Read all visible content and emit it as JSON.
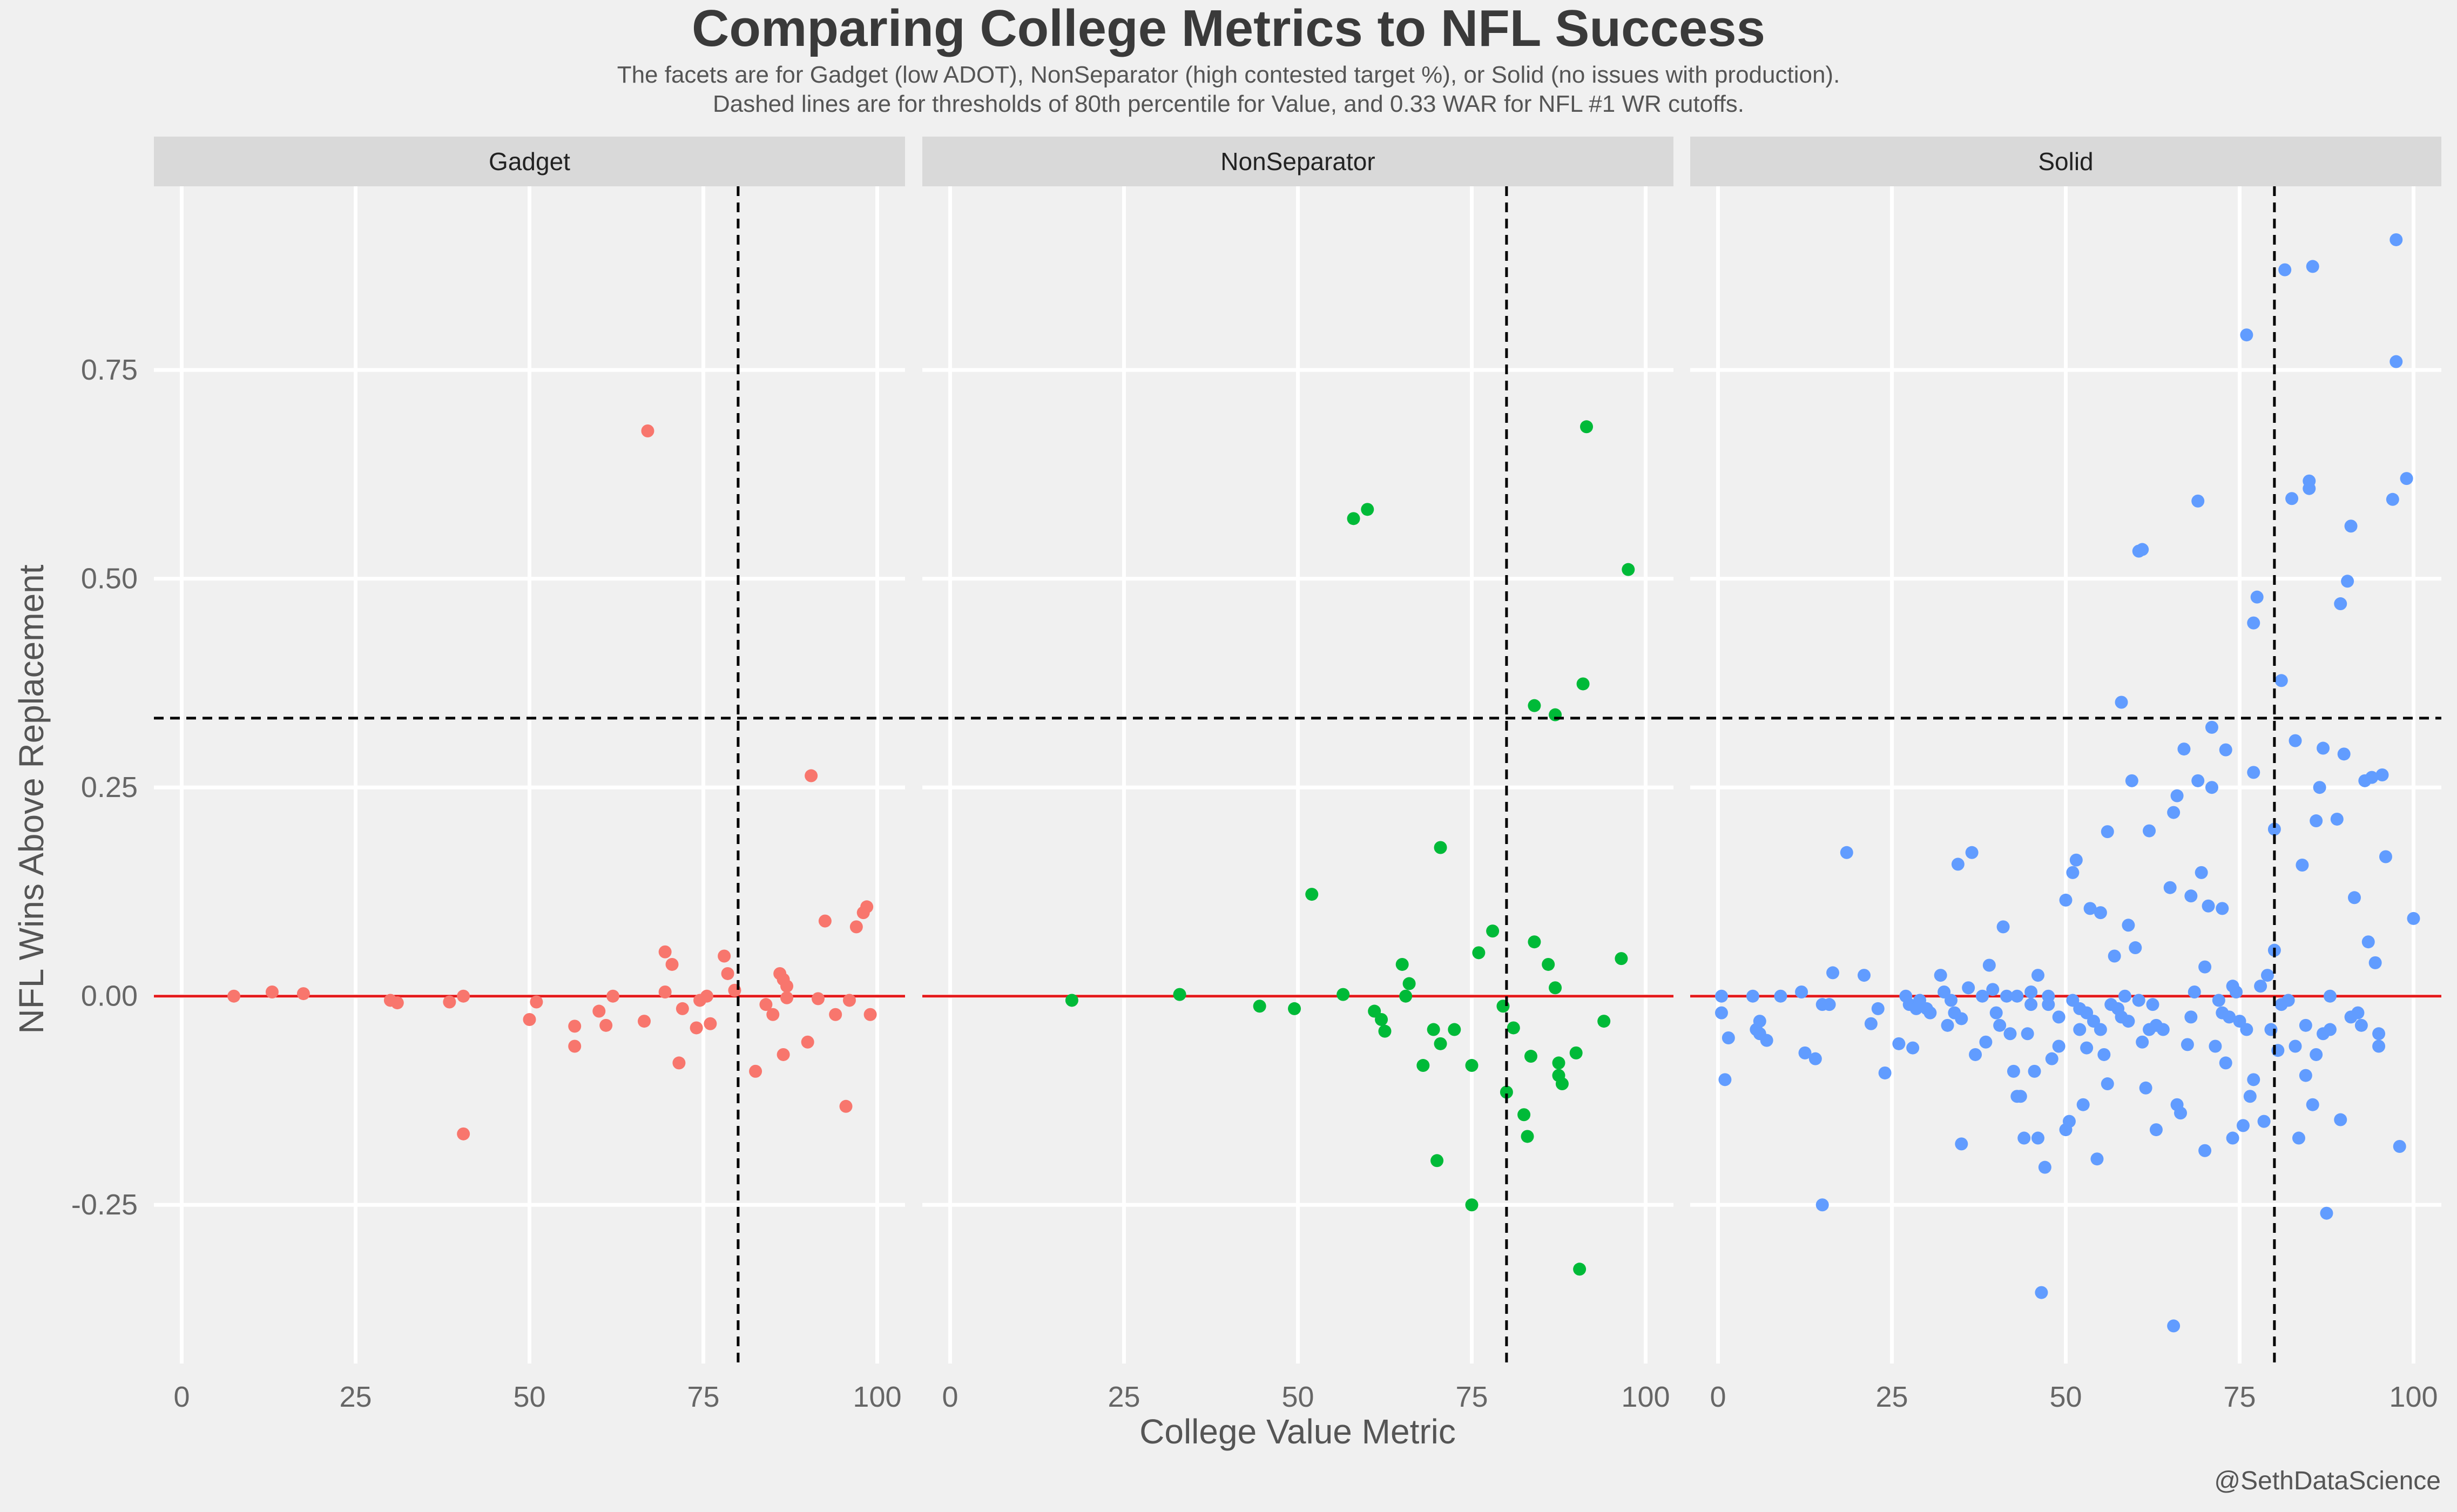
{
  "chart_data": {
    "type": "scatter",
    "title": "Comparing College Metrics to NFL Success",
    "subtitle": [
      "The facets are for Gadget (low ADOT), NonSeparator (high contested target %), or Solid (no issues with production).",
      "Dashed lines are for thresholds of 80th percentile for Value, and 0.33 WAR for NFL #1 WR cutoffs."
    ],
    "xlabel": "College Value Metric",
    "ylabel": "NFL Wins Above Replacement",
    "caption": "@SethDataScience",
    "xlim": [
      -4,
      104
    ],
    "ylim": [
      -0.44,
      0.97
    ],
    "x_ticks": [
      0,
      25,
      50,
      75,
      100
    ],
    "x_tick_labels": [
      "0",
      "25",
      "50",
      "75",
      "100"
    ],
    "y_ticks": [
      -0.25,
      0,
      0.25,
      0.5,
      0.75
    ],
    "y_tick_labels": [
      "-0.25",
      "0.00",
      "0.25",
      "0.50",
      "0.75"
    ],
    "grid": true,
    "reference_lines": {
      "x_dashed": 80,
      "y_dashed": 0.333,
      "y_solid_red": 0
    },
    "colors": {
      "background": "#f0f0f0",
      "strip": "#d9d9d9",
      "grid": "#ffffff",
      "zero_line": "#e41a1c",
      "dashed": "#000000"
    },
    "facets": [
      {
        "name": "Gadget",
        "color": "#f8766d",
        "points": [
          [
            7.5,
            0.0
          ],
          [
            13,
            0.005
          ],
          [
            17.5,
            0.003
          ],
          [
            30,
            -0.005
          ],
          [
            31,
            -0.008
          ],
          [
            38.5,
            -0.007
          ],
          [
            40.5,
            0.0
          ],
          [
            40.5,
            -0.165
          ],
          [
            50,
            -0.028
          ],
          [
            51,
            -0.007
          ],
          [
            56.5,
            -0.036
          ],
          [
            56.5,
            -0.06
          ],
          [
            60,
            -0.018
          ],
          [
            61,
            -0.035
          ],
          [
            62,
            0.0
          ],
          [
            66.5,
            -0.03
          ],
          [
            67,
            0.677
          ],
          [
            69.5,
            0.053
          ],
          [
            69.5,
            0.005
          ],
          [
            70.5,
            0.038
          ],
          [
            71.5,
            -0.08
          ],
          [
            72,
            -0.015
          ],
          [
            74,
            -0.038
          ],
          [
            74.5,
            -0.005
          ],
          [
            75.5,
            0.0
          ],
          [
            76,
            -0.033
          ],
          [
            78,
            0.048
          ],
          [
            78.5,
            0.027
          ],
          [
            79.5,
            0.007
          ],
          [
            82.5,
            -0.09
          ],
          [
            84,
            -0.01
          ],
          [
            85,
            -0.022
          ],
          [
            86,
            0.027
          ],
          [
            86.5,
            -0.07
          ],
          [
            86.5,
            0.02
          ],
          [
            87,
            -0.002
          ],
          [
            87,
            0.012
          ],
          [
            90,
            -0.055
          ],
          [
            90.5,
            0.264
          ],
          [
            91.5,
            -0.003
          ],
          [
            92.5,
            0.09
          ],
          [
            94,
            -0.022
          ],
          [
            95.5,
            -0.132
          ],
          [
            96,
            -0.005
          ],
          [
            97,
            0.083
          ],
          [
            98,
            0.1
          ],
          [
            98.5,
            0.107
          ],
          [
            99,
            -0.022
          ]
        ]
      },
      {
        "name": "NonSeparator",
        "color": "#00ba38",
        "points": [
          [
            17.5,
            -0.005
          ],
          [
            33,
            0.002
          ],
          [
            44.5,
            -0.012
          ],
          [
            49.5,
            -0.015
          ],
          [
            52,
            0.122
          ],
          [
            56.5,
            0.002
          ],
          [
            58,
            0.572
          ],
          [
            60,
            0.583
          ],
          [
            61,
            -0.018
          ],
          [
            62,
            -0.028
          ],
          [
            62.5,
            -0.042
          ],
          [
            65,
            0.038
          ],
          [
            65.5,
            0.0
          ],
          [
            66,
            0.015
          ],
          [
            68,
            -0.083
          ],
          [
            69.5,
            -0.04
          ],
          [
            70,
            -0.197
          ],
          [
            70.5,
            -0.057
          ],
          [
            70.5,
            0.178
          ],
          [
            72.5,
            -0.04
          ],
          [
            75,
            -0.083
          ],
          [
            75,
            -0.25
          ],
          [
            76,
            0.052
          ],
          [
            78,
            0.078
          ],
          [
            79.5,
            -0.012
          ],
          [
            80,
            -0.115
          ],
          [
            81,
            -0.038
          ],
          [
            82.5,
            -0.142
          ],
          [
            83,
            -0.168
          ],
          [
            83.5,
            -0.072
          ],
          [
            84,
            0.348
          ],
          [
            84,
            0.065
          ],
          [
            86,
            0.038
          ],
          [
            87,
            0.01
          ],
          [
            87,
            0.337
          ],
          [
            87.5,
            -0.08
          ],
          [
            87.5,
            -0.095
          ],
          [
            88,
            -0.105
          ],
          [
            90,
            -0.068
          ],
          [
            90.5,
            -0.327
          ],
          [
            91,
            0.374
          ],
          [
            91.5,
            0.682
          ],
          [
            94,
            -0.03
          ],
          [
            96.5,
            0.045
          ],
          [
            97.5,
            0.511
          ]
        ]
      },
      {
        "name": "Solid",
        "color": "#619cff",
        "points": [
          [
            0.5,
            0.0
          ],
          [
            0.5,
            -0.02
          ],
          [
            1,
            -0.1
          ],
          [
            1.5,
            -0.05
          ],
          [
            5,
            0.0
          ],
          [
            5.5,
            -0.04
          ],
          [
            6,
            -0.03
          ],
          [
            6,
            -0.045
          ],
          [
            7,
            -0.053
          ],
          [
            9,
            0.0
          ],
          [
            12,
            0.005
          ],
          [
            12.5,
            -0.068
          ],
          [
            14,
            -0.075
          ],
          [
            15,
            -0.25
          ],
          [
            15,
            -0.01
          ],
          [
            16,
            -0.01
          ],
          [
            16.5,
            0.028
          ],
          [
            18.5,
            0.172
          ],
          [
            21,
            0.025
          ],
          [
            22,
            -0.033
          ],
          [
            23,
            -0.015
          ],
          [
            24,
            -0.092
          ],
          [
            26,
            -0.057
          ],
          [
            27,
            0.0
          ],
          [
            27.5,
            -0.01
          ],
          [
            28,
            -0.062
          ],
          [
            28.5,
            -0.015
          ],
          [
            29,
            -0.005
          ],
          [
            30,
            -0.015
          ],
          [
            30.5,
            -0.02
          ],
          [
            32,
            0.025
          ],
          [
            32.5,
            0.005
          ],
          [
            33,
            -0.035
          ],
          [
            33.5,
            -0.005
          ],
          [
            34,
            -0.02
          ],
          [
            34.5,
            0.158
          ],
          [
            35,
            -0.177
          ],
          [
            35,
            -0.027
          ],
          [
            36,
            0.01
          ],
          [
            36.5,
            0.172
          ],
          [
            37,
            -0.07
          ],
          [
            38,
            0.0
          ],
          [
            38.5,
            -0.055
          ],
          [
            39,
            0.037
          ],
          [
            39.5,
            0.008
          ],
          [
            40,
            -0.02
          ],
          [
            40.5,
            -0.035
          ],
          [
            41,
            0.083
          ],
          [
            41.5,
            0.0
          ],
          [
            42,
            -0.045
          ],
          [
            42.5,
            -0.09
          ],
          [
            43,
            -0.12
          ],
          [
            43,
            -0.0
          ],
          [
            43.5,
            -0.12
          ],
          [
            44,
            -0.17
          ],
          [
            44.5,
            -0.045
          ],
          [
            45,
            -0.01
          ],
          [
            45,
            0.005
          ],
          [
            45.5,
            -0.09
          ],
          [
            46,
            0.025
          ],
          [
            46,
            -0.17
          ],
          [
            46.5,
            -0.355
          ],
          [
            47,
            -0.205
          ],
          [
            47.5,
            0.0
          ],
          [
            48,
            -0.075
          ],
          [
            49,
            -0.06
          ],
          [
            50,
            0.115
          ],
          [
            50,
            -0.16
          ],
          [
            50.5,
            -0.15
          ],
          [
            51,
            0.148
          ],
          [
            51,
            -0.005
          ],
          [
            51.5,
            0.163
          ],
          [
            52,
            -0.04
          ],
          [
            52.5,
            -0.13
          ],
          [
            53,
            -0.02
          ],
          [
            53,
            -0.062
          ],
          [
            53.5,
            0.105
          ],
          [
            54,
            -0.03
          ],
          [
            54.5,
            -0.195
          ],
          [
            55,
            0.1
          ],
          [
            55.5,
            -0.07
          ],
          [
            56,
            0.197
          ],
          [
            56,
            -0.105
          ],
          [
            56.5,
            -0.01
          ],
          [
            57,
            0.048
          ],
          [
            57.5,
            -0.015
          ],
          [
            58,
            0.352
          ],
          [
            58.5,
            0.0
          ],
          [
            59,
            0.085
          ],
          [
            59,
            -0.03
          ],
          [
            59.5,
            0.258
          ],
          [
            60,
            0.058
          ],
          [
            60.5,
            -0.005
          ],
          [
            60.5,
            0.533
          ],
          [
            61,
            0.535
          ],
          [
            61,
            -0.055
          ],
          [
            61.5,
            -0.11
          ],
          [
            62,
            0.198
          ],
          [
            62.5,
            -0.01
          ],
          [
            63,
            -0.16
          ],
          [
            63,
            -0.035
          ],
          [
            64,
            -0.04
          ],
          [
            65,
            0.13
          ],
          [
            65.5,
            -0.395
          ],
          [
            65.5,
            0.22
          ],
          [
            66,
            0.24
          ],
          [
            66,
            -0.13
          ],
          [
            66.5,
            -0.14
          ],
          [
            67,
            0.296
          ],
          [
            67.5,
            -0.058
          ],
          [
            68,
            0.12
          ],
          [
            68.5,
            0.005
          ],
          [
            69,
            0.593
          ],
          [
            69,
            0.258
          ],
          [
            69.5,
            0.148
          ],
          [
            70,
            -0.185
          ],
          [
            70,
            0.035
          ],
          [
            70.5,
            0.108
          ],
          [
            71,
            0.25
          ],
          [
            71,
            0.322
          ],
          [
            71.5,
            -0.06
          ],
          [
            72,
            -0.005
          ],
          [
            72.5,
            0.105
          ],
          [
            73,
            -0.08
          ],
          [
            73,
            0.295
          ],
          [
            73.5,
            -0.025
          ],
          [
            74,
            -0.17
          ],
          [
            74.5,
            0.005
          ],
          [
            75,
            -0.03
          ],
          [
            75.5,
            -0.155
          ],
          [
            76,
            0.792
          ],
          [
            76.5,
            -0.12
          ],
          [
            77,
            -0.1
          ],
          [
            77,
            0.447
          ],
          [
            77.5,
            0.478
          ],
          [
            77,
            0.268
          ],
          [
            78.5,
            -0.15
          ],
          [
            79,
            0.025
          ],
          [
            79.5,
            -0.04
          ],
          [
            80,
            0.2
          ],
          [
            80,
            0.055
          ],
          [
            80.5,
            -0.065
          ],
          [
            81,
            0.378
          ],
          [
            81.5,
            0.87
          ],
          [
            82,
            -0.005
          ],
          [
            82.5,
            0.596
          ],
          [
            83,
            0.306
          ],
          [
            83.5,
            -0.17
          ],
          [
            84,
            0.157
          ],
          [
            84.5,
            -0.035
          ],
          [
            85,
            0.608
          ],
          [
            85,
            0.617
          ],
          [
            85.5,
            0.874
          ],
          [
            85.5,
            -0.13
          ],
          [
            86,
            0.21
          ],
          [
            86,
            -0.07
          ],
          [
            86.5,
            0.25
          ],
          [
            87,
            0.297
          ],
          [
            87,
            -0.045
          ],
          [
            87.5,
            -0.26
          ],
          [
            88,
            -0.0
          ],
          [
            89,
            0.212
          ],
          [
            89.5,
            0.47
          ],
          [
            90,
            0.29
          ],
          [
            90.5,
            0.497
          ],
          [
            91,
            0.563
          ],
          [
            91.5,
            0.118
          ],
          [
            92,
            -0.02
          ],
          [
            92.5,
            -0.035
          ],
          [
            93,
            0.258
          ],
          [
            93.5,
            0.065
          ],
          [
            94,
            0.262
          ],
          [
            94.5,
            0.04
          ],
          [
            95,
            -0.045
          ],
          [
            95,
            -0.06
          ],
          [
            95.5,
            0.265
          ],
          [
            96,
            0.167
          ],
          [
            97,
            0.595
          ],
          [
            97.5,
            0.76
          ],
          [
            97.5,
            0.906
          ],
          [
            98,
            -0.18
          ],
          [
            99,
            0.62
          ],
          [
            100,
            0.093
          ],
          [
            89.5,
            -0.148
          ],
          [
            91,
            -0.025
          ],
          [
            83,
            -0.06
          ],
          [
            84.5,
            -0.095
          ],
          [
            88,
            -0.04
          ],
          [
            76,
            -0.04
          ],
          [
            72.5,
            -0.02
          ],
          [
            62,
            -0.04
          ],
          [
            58,
            -0.025
          ],
          [
            55,
            -0.04
          ],
          [
            52,
            -0.015
          ],
          [
            49,
            -0.025
          ],
          [
            47.5,
            -0.01
          ],
          [
            68,
            -0.025
          ],
          [
            74,
            0.012
          ],
          [
            78,
            0.012
          ],
          [
            81,
            -0.01
          ]
        ]
      }
    ]
  }
}
